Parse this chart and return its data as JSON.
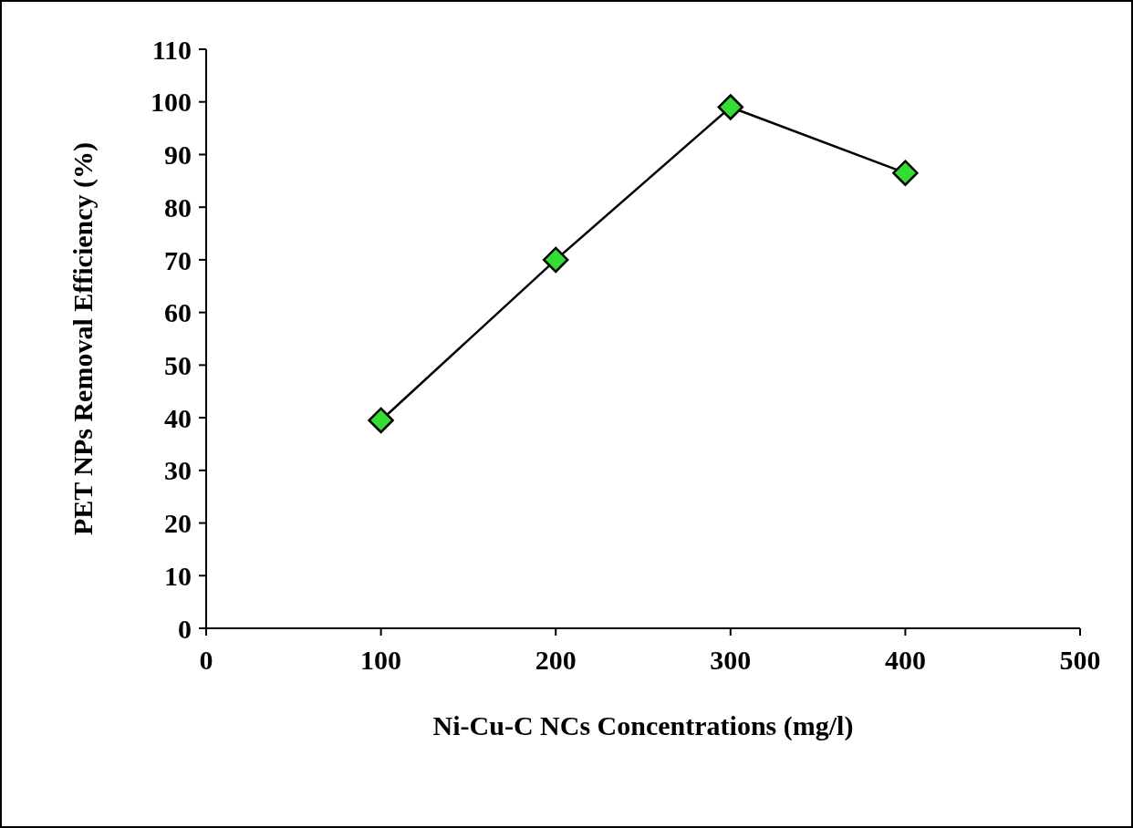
{
  "chart_data": {
    "type": "line",
    "xlabel": "Ni-Cu-C NCs Concentrations (mg/l)",
    "ylabel": "PET NPs Removal Efficiency (%)",
    "x": [
      100,
      200,
      300,
      400
    ],
    "series": [
      {
        "color": "#33dd33",
        "values": [
          39.5,
          70,
          99,
          86.5
        ]
      }
    ],
    "xlim": [
      0,
      500
    ],
    "xticks": [
      0,
      100,
      200,
      300,
      400,
      500
    ],
    "ylim": [
      0,
      110
    ],
    "yticks": [
      0,
      10,
      20,
      30,
      40,
      50,
      60,
      70,
      80,
      90,
      100,
      110
    ],
    "marker": "diamond",
    "line_style": "solid",
    "grid": false,
    "legend": false
  }
}
